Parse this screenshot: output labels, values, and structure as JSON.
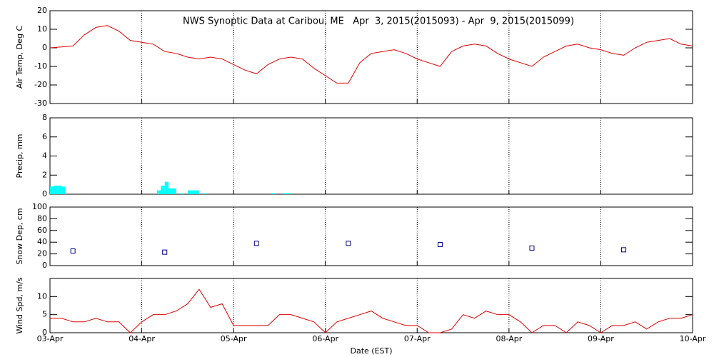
{
  "title": "NWS Synoptic Data at Caribou, ME   Apr  3, 2015(2015093) - Apr  9, 2015(2015099)",
  "x_label": "Date (EST)",
  "chart_data": [
    {
      "type": "line",
      "y_label": "Air Temp, Deg C",
      "color": "#e00000",
      "xgrid": true,
      "xlim": [
        0,
        168
      ],
      "xticks": [
        0,
        24,
        48,
        72,
        96,
        120,
        144,
        168
      ],
      "ylim": [
        -30,
        20
      ],
      "yticks": [
        -30,
        -20,
        -10,
        0,
        10,
        20
      ],
      "x": [
        0,
        3,
        6,
        9,
        12,
        15,
        18,
        21,
        24,
        27,
        30,
        33,
        36,
        39,
        42,
        45,
        48,
        51,
        54,
        57,
        60,
        63,
        66,
        69,
        72,
        75,
        78,
        81,
        84,
        87,
        90,
        93,
        96,
        99,
        102,
        105,
        108,
        111,
        114,
        117,
        120,
        123,
        126,
        129,
        132,
        135,
        138,
        141,
        144,
        147,
        150,
        153,
        156,
        159,
        162,
        165,
        168
      ],
      "values": [
        0,
        0.5,
        1,
        7,
        11,
        12,
        9,
        4,
        3,
        2,
        -2,
        -3,
        -5,
        -6,
        -5,
        -6,
        -9,
        -12,
        -14,
        -9,
        -6,
        -5,
        -6,
        -11,
        -15,
        -19,
        -19,
        -8,
        -3,
        -2,
        -1,
        -3,
        -6,
        -8,
        -10,
        -2,
        1,
        2,
        1,
        -3,
        -6,
        -8,
        -10,
        -5,
        -2,
        1,
        2,
        0,
        -1,
        -3,
        -4,
        0,
        3,
        4,
        5,
        2,
        1
      ]
    },
    {
      "type": "bar",
      "y_label": "Precip, mm",
      "color": "#00ffff",
      "xgrid": true,
      "xlim": [
        0,
        168
      ],
      "xticks": [
        0,
        24,
        48,
        72,
        96,
        120,
        144,
        168
      ],
      "ylim": [
        0,
        8
      ],
      "yticks": [
        0,
        2,
        4,
        6,
        8
      ],
      "x": [
        0,
        1,
        2,
        3,
        28,
        29,
        30,
        31,
        32,
        34,
        36,
        37,
        38,
        40,
        58,
        61,
        62
      ],
      "values": [
        0.8,
        0.9,
        0.9,
        0.8,
        0.4,
        0.9,
        1.3,
        0.6,
        0.6,
        0.1,
        0.4,
        0.4,
        0.4,
        0.1,
        0.1,
        0.1,
        0.1
      ]
    },
    {
      "type": "scatter",
      "y_label": "Snow Dep, cm",
      "color": "#000080",
      "xgrid": true,
      "xlim": [
        0,
        168
      ],
      "xticks": [
        0,
        24,
        48,
        72,
        96,
        120,
        144,
        168
      ],
      "ylim": [
        0,
        100
      ],
      "yticks": [
        0,
        20,
        40,
        60,
        80,
        100
      ],
      "x": [
        6,
        30,
        54,
        78,
        102,
        126,
        150
      ],
      "values": [
        25,
        23,
        38,
        38,
        36,
        30,
        27
      ]
    },
    {
      "type": "line",
      "y_label": "Wind Spd, m/s",
      "color": "#e00000",
      "xgrid": true,
      "xlim": [
        0,
        168
      ],
      "xticks": [
        {
          "value": 0,
          "label": "03-Apr"
        },
        {
          "value": 24,
          "label": "04-Apr"
        },
        {
          "value": 48,
          "label": "05-Apr"
        },
        {
          "value": 72,
          "label": "06-Apr"
        },
        {
          "value": 96,
          "label": "07-Apr"
        },
        {
          "value": 120,
          "label": "08-Apr"
        },
        {
          "value": 144,
          "label": "09-Apr"
        },
        {
          "value": 168,
          "label": "10-Apr"
        }
      ],
      "ylim": [
        0,
        15
      ],
      "yticks": [
        0,
        5,
        10
      ],
      "x": [
        0,
        3,
        6,
        9,
        12,
        15,
        18,
        21,
        24,
        27,
        30,
        33,
        36,
        39,
        42,
        45,
        48,
        51,
        54,
        57,
        60,
        63,
        66,
        69,
        72,
        75,
        78,
        81,
        84,
        87,
        90,
        93,
        96,
        99,
        102,
        105,
        108,
        111,
        114,
        117,
        120,
        123,
        126,
        129,
        132,
        135,
        138,
        141,
        144,
        147,
        150,
        153,
        156,
        159,
        162,
        165,
        168
      ],
      "values": [
        4,
        4,
        3,
        3,
        4,
        3,
        3,
        0,
        3,
        5,
        5,
        6,
        8,
        12,
        7,
        8,
        2,
        2,
        2,
        2,
        5,
        5,
        4,
        3,
        0,
        3,
        4,
        5,
        6,
        4,
        3,
        2,
        2,
        0,
        0,
        1,
        5,
        4,
        6,
        5,
        5,
        3,
        0,
        2,
        2,
        0,
        3,
        2,
        0,
        2,
        2,
        3,
        1,
        3,
        4,
        4,
        5
      ]
    }
  ]
}
